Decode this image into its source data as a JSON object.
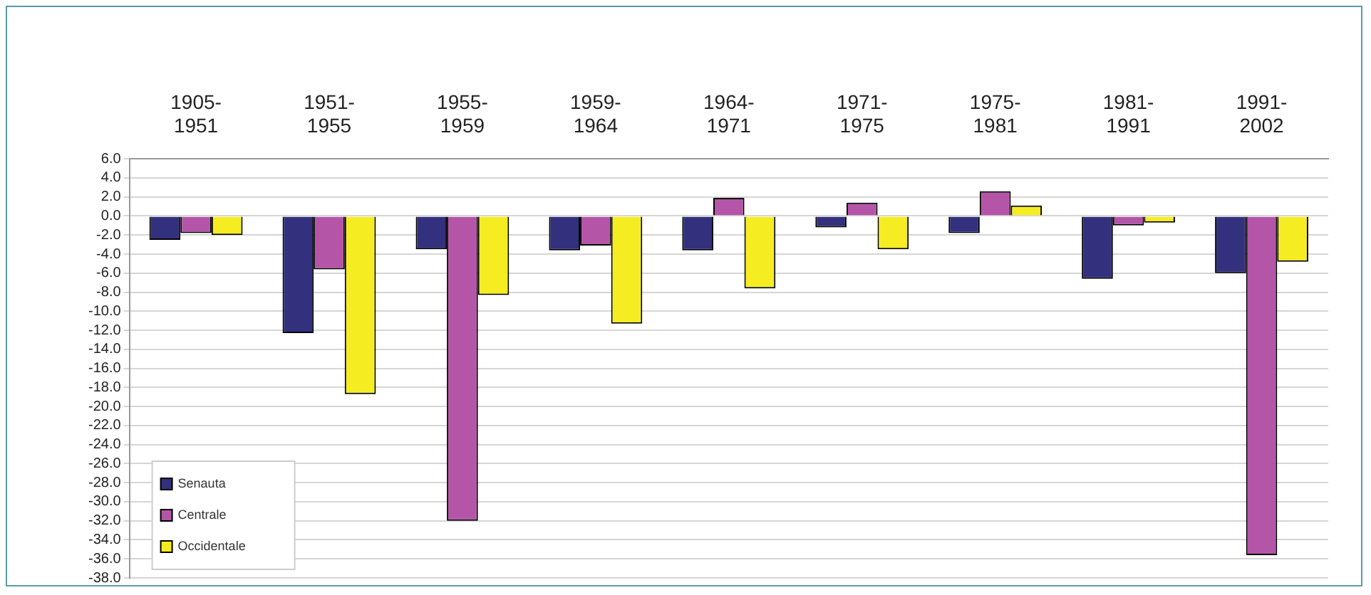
{
  "chart_data": {
    "type": "bar",
    "categories": [
      "1905-1951",
      "1951-1955",
      "1955-1959",
      "1959-1964",
      "1964-1971",
      "1971-1975",
      "1975-1981",
      "1981-1991",
      "1991-2002"
    ],
    "series": [
      {
        "name": "Senauta",
        "color": "#33307e",
        "values": [
          -2.5,
          -12.3,
          -3.5,
          -3.6,
          -3.6,
          -1.2,
          -1.8,
          -6.6,
          -6.0
        ]
      },
      {
        "name": "Centrale",
        "color": "#b455a8",
        "values": [
          -1.8,
          -5.6,
          -32.0,
          -3.1,
          1.9,
          1.4,
          2.6,
          -1.0,
          -35.6
        ]
      },
      {
        "name": "Occidentale",
        "color": "#f5ec21",
        "values": [
          -2.0,
          -18.7,
          -8.3,
          -11.3,
          -7.6,
          -3.5,
          1.1,
          -0.7,
          -4.8
        ]
      }
    ],
    "ylim": [
      -38,
      6
    ],
    "yticks": [
      {
        "value": 6,
        "label": "6.0"
      },
      {
        "value": 4,
        "label": "4.0"
      },
      {
        "value": 2,
        "label": "2.0"
      },
      {
        "value": 0,
        "label": "0.0"
      },
      {
        "value": -2,
        "label": "-2.0"
      },
      {
        "value": -4,
        "label": "-4.0"
      },
      {
        "value": -6,
        "label": "-6.0"
      },
      {
        "value": -8,
        "label": "-8.0"
      },
      {
        "value": -10,
        "label": "-10.0"
      },
      {
        "value": -12,
        "label": "-12.0"
      },
      {
        "value": -14,
        "label": "-14.0"
      },
      {
        "value": -16,
        "label": "-16.0"
      },
      {
        "value": -18,
        "label": "-18.0"
      },
      {
        "value": -20,
        "label": "-20.0"
      },
      {
        "value": -22,
        "label": "-22.0"
      },
      {
        "value": -24,
        "label": "-24.0"
      },
      {
        "value": -26,
        "label": "-26.0"
      },
      {
        "value": -28,
        "label": "-28.0"
      },
      {
        "value": -30,
        "label": "-30.0"
      },
      {
        "value": -32,
        "label": "-32.0"
      },
      {
        "value": -34,
        "label": "-34.0"
      },
      {
        "value": -36,
        "label": "-36.0"
      },
      {
        "value": -38,
        "label": "-38.0"
      }
    ],
    "grid": "y",
    "legend": "bottom left"
  }
}
